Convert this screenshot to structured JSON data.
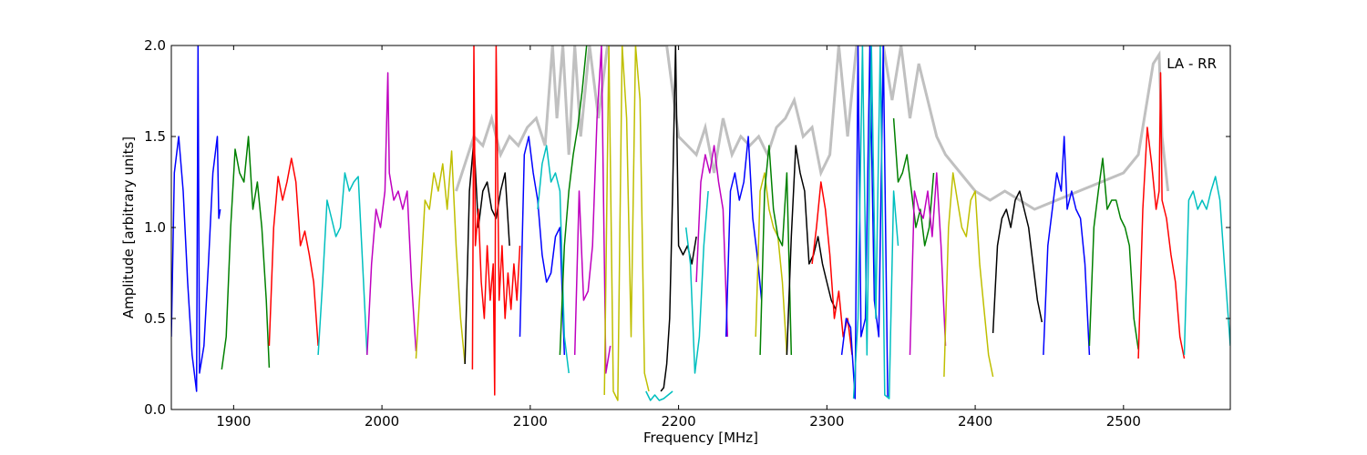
{
  "chart_data": {
    "type": "line",
    "title": "",
    "annotation": "LA - RR",
    "xlabel": "Frequency [MHz]",
    "ylabel": "Amplitude [arbitrary units]",
    "xlim": [
      1858,
      2572
    ],
    "ylim": [
      0,
      2.0
    ],
    "x_ticks": [
      1900,
      2000,
      2100,
      2200,
      2300,
      2400,
      2500
    ],
    "y_ticks": [
      0.0,
      0.5,
      1.0,
      1.5,
      2.0
    ],
    "x_tick_labels": [
      "1900",
      "2000",
      "2100",
      "2200",
      "2300",
      "2400",
      "2500"
    ],
    "y_tick_labels": [
      "0.0",
      "0.5",
      "1.0",
      "1.5",
      "2.0"
    ],
    "grid": false,
    "legend": "none",
    "series": [
      {
        "color": "#0000ff",
        "x": [
          1858,
          1860,
          1863,
          1866,
          1869,
          1872,
          1875,
          1876,
          1877,
          1880,
          1883,
          1886,
          1889,
          1890,
          1891
        ],
        "y": [
          0.4,
          1.3,
          1.5,
          1.2,
          0.7,
          0.3,
          0.1,
          2.0,
          0.2,
          0.35,
          0.8,
          1.3,
          1.5,
          1.05,
          1.1
        ]
      },
      {
        "color": "#008000",
        "x": [
          1892,
          1895,
          1898,
          1901,
          1904,
          1907,
          1910,
          1913,
          1916,
          1919,
          1922,
          1924
        ],
        "y": [
          0.22,
          0.4,
          1.0,
          1.43,
          1.3,
          1.25,
          1.5,
          1.1,
          1.25,
          1.0,
          0.6,
          0.23
        ]
      },
      {
        "color": "#ff0000",
        "x": [
          1924,
          1927,
          1930,
          1933,
          1936,
          1939,
          1942,
          1945,
          1948,
          1951,
          1954,
          1957
        ],
        "y": [
          0.35,
          1.0,
          1.28,
          1.15,
          1.25,
          1.38,
          1.25,
          0.9,
          0.98,
          0.85,
          0.7,
          0.35
        ]
      },
      {
        "color": "#00bfbf",
        "x": [
          1957,
          1960,
          1963,
          1966,
          1969,
          1972,
          1975,
          1978,
          1981,
          1984,
          1987,
          1990
        ],
        "y": [
          0.3,
          0.7,
          1.15,
          1.05,
          0.95,
          1.0,
          1.3,
          1.2,
          1.25,
          1.28,
          0.8,
          0.3
        ]
      },
      {
        "color": "#bf00bf",
        "x": [
          1990,
          1993,
          1996,
          1999,
          2002,
          2004,
          2005,
          2008,
          2011,
          2014,
          2017,
          2020,
          2023
        ],
        "y": [
          0.3,
          0.8,
          1.1,
          1.0,
          1.2,
          1.85,
          1.3,
          1.15,
          1.2,
          1.1,
          1.2,
          0.7,
          0.32
        ]
      },
      {
        "color": "#bfbf00",
        "x": [
          2023,
          2026,
          2029,
          2032,
          2035,
          2038,
          2041,
          2044,
          2047,
          2050,
          2053,
          2056
        ],
        "y": [
          0.28,
          0.7,
          1.15,
          1.1,
          1.3,
          1.2,
          1.35,
          1.1,
          1.42,
          0.9,
          0.5,
          0.25
        ]
      },
      {
        "color": "#000000",
        "x": [
          2056,
          2059,
          2062,
          2065,
          2068,
          2071,
          2074,
          2077,
          2080,
          2083,
          2086
        ],
        "y": [
          0.25,
          1.2,
          1.48,
          1.0,
          1.2,
          1.25,
          1.1,
          1.05,
          1.2,
          1.3,
          0.9
        ]
      },
      {
        "color": "#ff0000",
        "x": [
          2061,
          2062,
          2063,
          2065,
          2067,
          2069,
          2071,
          2073,
          2075,
          2076,
          2077,
          2079,
          2081,
          2083,
          2085,
          2087,
          2089,
          2091,
          2093
        ],
        "y": [
          0.22,
          2.0,
          0.9,
          1.1,
          0.7,
          0.5,
          0.9,
          0.6,
          0.8,
          0.08,
          2.0,
          0.6,
          0.9,
          0.5,
          0.75,
          0.55,
          0.8,
          0.6,
          0.9
        ]
      },
      {
        "color": "#0000ff",
        "x": [
          2093,
          2096,
          2099,
          2102,
          2105,
          2108,
          2111,
          2114,
          2117,
          2120,
          2123
        ],
        "y": [
          0.4,
          1.4,
          1.5,
          1.3,
          1.15,
          0.85,
          0.7,
          0.75,
          0.95,
          1.0,
          0.3
        ]
      },
      {
        "color": "#00bfbf",
        "x": [
          2105,
          2108,
          2111,
          2114,
          2117,
          2120,
          2123,
          2126
        ],
        "y": [
          1.1,
          1.35,
          1.45,
          1.25,
          1.3,
          1.2,
          0.4,
          0.2
        ]
      },
      {
        "color": "#008000",
        "x": [
          2120,
          2123,
          2126,
          2129,
          2132,
          2135,
          2138
        ],
        "y": [
          0.3,
          0.9,
          1.2,
          1.4,
          1.55,
          1.75,
          2.0
        ]
      },
      {
        "color": "#bf00bf",
        "x": [
          2130,
          2133,
          2136,
          2139,
          2142,
          2145,
          2148,
          2151,
          2154
        ],
        "y": [
          0.3,
          1.2,
          0.6,
          0.65,
          0.9,
          1.6,
          2.0,
          0.2,
          0.35
        ]
      },
      {
        "color": "#bfbf00",
        "x": [
          2150,
          2153,
          2156,
          2159,
          2162,
          2165,
          2168,
          2171,
          2174,
          2177,
          2180
        ],
        "y": [
          0.08,
          2.0,
          0.1,
          0.05,
          2.0,
          1.6,
          0.4,
          2.0,
          1.7,
          0.2,
          0.1
        ]
      },
      {
        "color": "#00bfbf",
        "x": [
          2178,
          2181,
          2184,
          2187,
          2190,
          2193,
          2196
        ],
        "y": [
          0.1,
          0.05,
          0.08,
          0.05,
          0.06,
          0.08,
          0.1
        ]
      },
      {
        "color": "#000000",
        "x": [
          2188,
          2190,
          2192,
          2194,
          2196,
          2198,
          2200,
          2203,
          2206,
          2209,
          2212
        ],
        "y": [
          0.1,
          0.12,
          0.25,
          0.5,
          1.2,
          2.0,
          0.9,
          0.85,
          0.9,
          0.8,
          0.95
        ]
      },
      {
        "color": "#00bfbf",
        "x": [
          2205,
          2208,
          2211,
          2214,
          2217,
          2220
        ],
        "y": [
          1.0,
          0.8,
          0.2,
          0.4,
          0.9,
          1.2
        ]
      },
      {
        "color": "#bf00bf",
        "x": [
          2212,
          2215,
          2218,
          2221,
          2224,
          2227,
          2230,
          2233
        ],
        "y": [
          0.7,
          1.25,
          1.4,
          1.3,
          1.45,
          1.25,
          1.1,
          0.4
        ]
      },
      {
        "color": "#0000ff",
        "x": [
          2232,
          2235,
          2238,
          2241,
          2244,
          2247,
          2250,
          2253,
          2256
        ],
        "y": [
          0.4,
          1.2,
          1.3,
          1.15,
          1.25,
          1.5,
          1.05,
          0.85,
          0.6
        ]
      },
      {
        "color": "#bfbf00",
        "x": [
          2252,
          2255,
          2258,
          2261,
          2264,
          2267,
          2270,
          2273
        ],
        "y": [
          0.4,
          1.2,
          1.3,
          1.1,
          1.0,
          0.95,
          0.7,
          0.3
        ]
      },
      {
        "color": "#008000",
        "x": [
          2255,
          2258,
          2261,
          2264,
          2267,
          2270,
          2273,
          2276
        ],
        "y": [
          0.3,
          1.2,
          1.45,
          1.1,
          0.95,
          0.9,
          1.3,
          0.3
        ]
      },
      {
        "color": "#000000",
        "x": [
          2273,
          2276,
          2279,
          2282,
          2285,
          2288,
          2291,
          2294,
          2297,
          2300,
          2303,
          2306
        ],
        "y": [
          0.3,
          0.95,
          1.45,
          1.3,
          1.2,
          0.8,
          0.85,
          0.95,
          0.8,
          0.7,
          0.6,
          0.55
        ]
      },
      {
        "color": "#ff0000",
        "x": [
          2290,
          2293,
          2296,
          2299,
          2302,
          2305,
          2308,
          2311,
          2314,
          2317
        ],
        "y": [
          0.8,
          1.0,
          1.25,
          1.1,
          0.85,
          0.5,
          0.65,
          0.4,
          0.5,
          0.3
        ]
      },
      {
        "color": "#0000ff",
        "x": [
          2310,
          2313,
          2316,
          2319,
          2321,
          2323,
          2326,
          2329,
          2332,
          2335,
          2338,
          2341
        ],
        "y": [
          0.3,
          0.5,
          0.45,
          0.06,
          2.0,
          0.4,
          0.5,
          2.0,
          0.6,
          0.4,
          2.0,
          0.07
        ]
      },
      {
        "color": "#00bfbf",
        "x": [
          2318,
          2321,
          2324,
          2327,
          2330,
          2333,
          2336,
          2339,
          2342,
          2345,
          2348
        ],
        "y": [
          0.06,
          0.5,
          2.0,
          0.3,
          2.0,
          0.5,
          2.0,
          0.08,
          0.06,
          1.2,
          0.9
        ]
      },
      {
        "color": "#008000",
        "x": [
          2345,
          2348,
          2351,
          2354,
          2357,
          2360,
          2363,
          2366,
          2369,
          2372
        ],
        "y": [
          1.6,
          1.25,
          1.3,
          1.4,
          1.2,
          1.0,
          1.1,
          0.9,
          1.0,
          1.3
        ]
      },
      {
        "color": "#bf00bf",
        "x": [
          2356,
          2359,
          2362,
          2365,
          2368,
          2371,
          2374,
          2377,
          2380
        ],
        "y": [
          0.3,
          1.2,
          1.1,
          1.05,
          1.2,
          0.95,
          1.3,
          0.9,
          0.35
        ]
      },
      {
        "color": "#bfbf00",
        "x": [
          2379,
          2382,
          2385,
          2388,
          2391,
          2394,
          2397,
          2400,
          2403,
          2406,
          2409,
          2412
        ],
        "y": [
          0.18,
          1.0,
          1.3,
          1.15,
          1.0,
          0.95,
          1.15,
          1.2,
          0.8,
          0.55,
          0.3,
          0.18
        ]
      },
      {
        "color": "#000000",
        "x": [
          2412,
          2415,
          2418,
          2421,
          2424,
          2427,
          2430,
          2433,
          2436,
          2439,
          2442,
          2445
        ],
        "y": [
          0.42,
          0.9,
          1.05,
          1.1,
          1.0,
          1.15,
          1.2,
          1.1,
          1.0,
          0.8,
          0.6,
          0.48
        ]
      },
      {
        "color": "#0000ff",
        "x": [
          2446,
          2449,
          2452,
          2455,
          2458,
          2460,
          2462,
          2465,
          2468,
          2471,
          2474,
          2477
        ],
        "y": [
          0.3,
          0.9,
          1.1,
          1.3,
          1.2,
          1.5,
          1.1,
          1.2,
          1.1,
          1.05,
          0.8,
          0.3
        ]
      },
      {
        "color": "#008000",
        "x": [
          2477,
          2480,
          2483,
          2486,
          2489,
          2492,
          2495,
          2498,
          2501,
          2504,
          2507,
          2510
        ],
        "y": [
          0.35,
          1.0,
          1.2,
          1.38,
          1.1,
          1.15,
          1.15,
          1.05,
          1.0,
          0.9,
          0.5,
          0.33
        ]
      },
      {
        "color": "#ff0000",
        "x": [
          2510,
          2513,
          2516,
          2519,
          2522,
          2524,
          2525,
          2526,
          2529,
          2532,
          2535,
          2538,
          2541
        ],
        "y": [
          0.28,
          1.1,
          1.55,
          1.35,
          1.1,
          1.2,
          1.85,
          1.15,
          1.05,
          0.85,
          0.7,
          0.4,
          0.28
        ]
      },
      {
        "color": "#00bfbf",
        "x": [
          2541,
          2544,
          2547,
          2550,
          2553,
          2556,
          2559,
          2562,
          2565,
          2568,
          2572
        ],
        "y": [
          0.3,
          1.15,
          1.2,
          1.1,
          1.15,
          1.1,
          1.2,
          1.28,
          1.15,
          0.8,
          0.35
        ]
      }
    ],
    "grey_envelope": {
      "color": "#c0c0c0",
      "x": [
        2050,
        2058,
        2062,
        2068,
        2074,
        2080,
        2086,
        2092,
        2098,
        2104,
        2110,
        2115,
        2118,
        2122,
        2126,
        2130,
        2134,
        2140,
        2146,
        2152,
        2160,
        2168,
        2176,
        2184,
        2192,
        2200,
        2206,
        2212,
        2218,
        2224,
        2230,
        2236,
        2242,
        2248,
        2254,
        2260,
        2266,
        2272,
        2278,
        2284,
        2290,
        2296,
        2302,
        2308,
        2314,
        2320,
        2326,
        2332,
        2338,
        2344,
        2350,
        2356,
        2362,
        2368,
        2374,
        2380,
        2390,
        2400,
        2410,
        2420,
        2430,
        2440,
        2500,
        2510,
        2520,
        2524,
        2526,
        2530
      ],
      "y": [
        1.2,
        1.4,
        1.5,
        1.45,
        1.6,
        1.4,
        1.5,
        1.45,
        1.55,
        1.6,
        1.45,
        2.0,
        1.6,
        2.0,
        1.4,
        2.0,
        1.5,
        2.0,
        1.6,
        2.0,
        2.0,
        2.0,
        2.0,
        2.0,
        2.0,
        1.5,
        1.45,
        1.4,
        1.55,
        1.3,
        1.6,
        1.4,
        1.5,
        1.45,
        1.5,
        1.4,
        1.55,
        1.6,
        1.7,
        1.5,
        1.55,
        1.3,
        1.4,
        2.0,
        1.5,
        2.0,
        2.0,
        2.0,
        2.0,
        1.7,
        2.0,
        1.6,
        1.9,
        1.7,
        1.5,
        1.4,
        1.3,
        1.2,
        1.15,
        1.2,
        1.15,
        1.1,
        1.3,
        1.4,
        1.9,
        1.95,
        1.5,
        1.2
      ]
    }
  }
}
